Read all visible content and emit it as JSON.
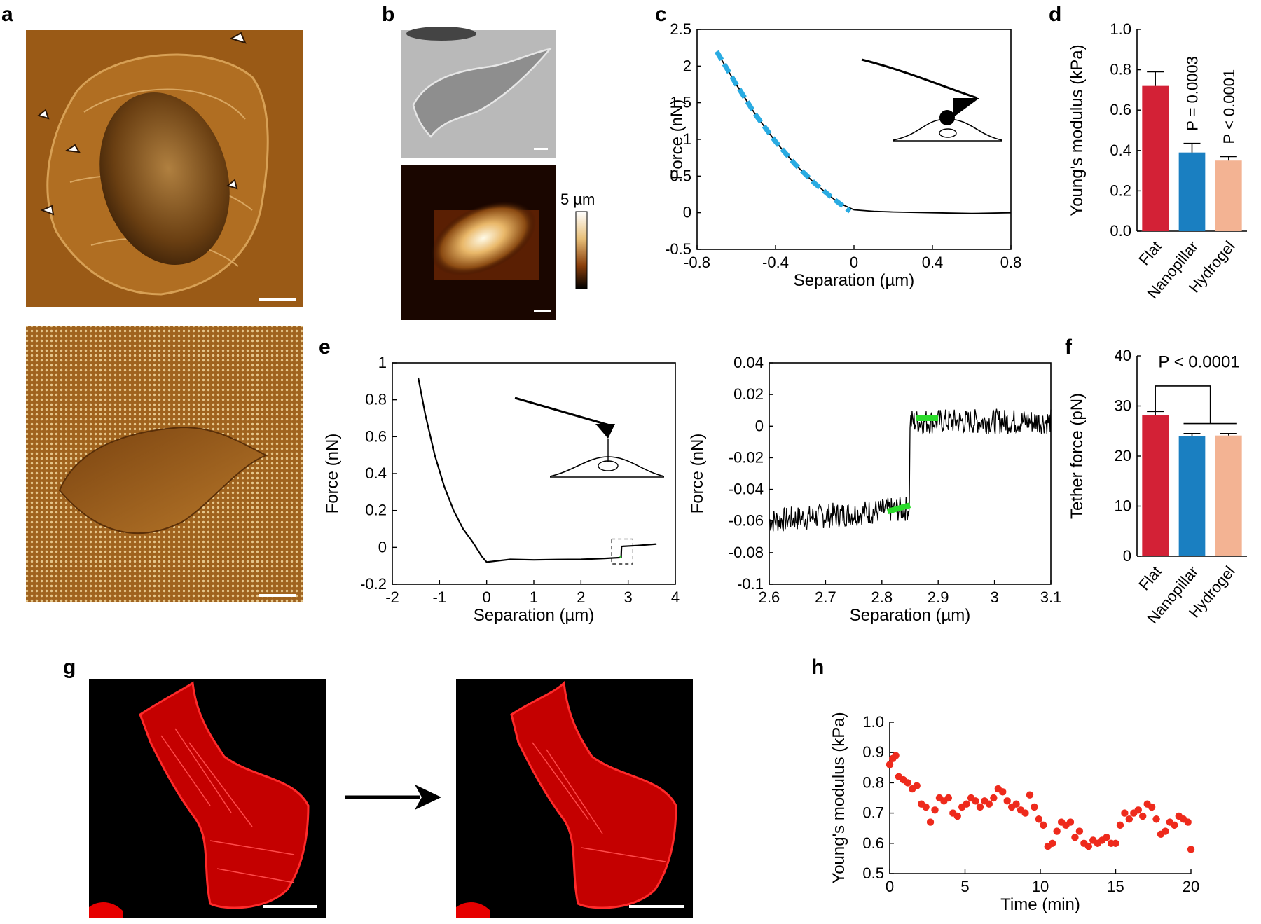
{
  "panel_labels": {
    "a": "a",
    "b": "b",
    "c": "c",
    "d": "d",
    "e": "e",
    "f": "f",
    "g": "g",
    "h": "h"
  },
  "colors": {
    "flat": "#d32136",
    "nanopillar": "#1a7fc1",
    "hydrogel": "#f3b393",
    "fit_dashed": "#29abe2",
    "step_fit": "#2bdc2b",
    "scatter": "#ee2a1c",
    "actin": "#e60000"
  },
  "panel_b": {
    "scale_label": "5 µm"
  },
  "chart_data": [
    {
      "id": "c",
      "type": "line",
      "xlabel": "Separation (µm)",
      "ylabel": "Force (nN)",
      "xlim": [
        -0.8,
        0.8
      ],
      "ylim": [
        -0.5,
        2.5
      ],
      "xticks": [
        -0.8,
        -0.4,
        0,
        0.4,
        0.8
      ],
      "xtick_labels": [
        "-0.8",
        "-0.4",
        "0",
        "0.4",
        "0.8"
      ],
      "yticks": [
        -0.5,
        0,
        0.5,
        1,
        1.5,
        2,
        2.5
      ],
      "ytick_labels": [
        "-0.5",
        "0",
        "0.5",
        "1",
        "1.5",
        "2",
        "2.5"
      ],
      "series": [
        {
          "name": "curve",
          "x": [
            -0.7,
            -0.6,
            -0.5,
            -0.4,
            -0.3,
            -0.2,
            -0.1,
            -0.05,
            0,
            0.1,
            0.2,
            0.4,
            0.6,
            0.8
          ],
          "y": [
            2.2,
            1.75,
            1.33,
            0.97,
            0.66,
            0.4,
            0.18,
            0.1,
            0.04,
            0.02,
            0.01,
            0.0,
            -0.01,
            0.0
          ]
        },
        {
          "name": "fit",
          "x": [
            -0.7,
            -0.6,
            -0.5,
            -0.4,
            -0.3,
            -0.2,
            -0.1,
            -0.02
          ],
          "y": [
            2.2,
            1.75,
            1.33,
            0.97,
            0.66,
            0.4,
            0.18,
            0.02
          ]
        }
      ]
    },
    {
      "id": "d",
      "type": "bar",
      "categories": [
        "Flat",
        "Nanopillar",
        "Hydrogel"
      ],
      "values": [
        0.72,
        0.39,
        0.35
      ],
      "errors": [
        0.07,
        0.045,
        0.02
      ],
      "ylabel": "Young's modulus (kPa)",
      "ylim": [
        0,
        1.0
      ],
      "yticks": [
        0,
        0.2,
        0.4,
        0.6,
        0.8,
        1.0
      ],
      "ytick_labels": [
        "0.0",
        "0.2",
        "0.4",
        "0.6",
        "0.8",
        "1.0"
      ],
      "annotations": [
        "P = 0.0003",
        "P < 0.0001"
      ]
    },
    {
      "id": "e1",
      "type": "line",
      "xlabel": "Separation (µm)",
      "ylabel": "Force (nN)",
      "xlim": [
        -2,
        4
      ],
      "ylim": [
        -0.2,
        1
      ],
      "xticks": [
        -2,
        -1,
        0,
        1,
        2,
        3,
        4
      ],
      "xtick_labels": [
        "-2",
        "-1",
        "0",
        "1",
        "2",
        "3",
        "4"
      ],
      "yticks": [
        -0.2,
        0,
        0.2,
        0.4,
        0.6,
        0.8,
        1
      ],
      "ytick_labels": [
        "-0.2",
        "0",
        "0.2",
        "0.4",
        "0.6",
        "0.8",
        "1"
      ],
      "series": [
        {
          "name": "retract",
          "x": [
            -1.45,
            -1.3,
            -1.1,
            -0.9,
            -0.7,
            -0.5,
            -0.3,
            -0.1,
            0,
            0.5,
            1,
            1.5,
            2,
            2.5,
            2.85,
            2.86,
            3.2,
            3.6
          ],
          "y": [
            0.92,
            0.72,
            0.5,
            0.33,
            0.2,
            0.1,
            0.03,
            -0.05,
            -0.08,
            -0.065,
            -0.068,
            -0.066,
            -0.065,
            -0.06,
            -0.055,
            0.005,
            0.01,
            0.018
          ]
        }
      ]
    },
    {
      "id": "e2",
      "type": "line",
      "xlabel": "Separation (µm)",
      "ylabel": "Force (nN)",
      "xlim": [
        2.6,
        3.1
      ],
      "ylim": [
        -0.1,
        0.04
      ],
      "xticks": [
        2.6,
        2.7,
        2.8,
        2.9,
        3,
        3.1
      ],
      "xtick_labels": [
        "2.6",
        "2.7",
        "2.8",
        "2.9",
        "3",
        "3.1"
      ],
      "yticks": [
        -0.1,
        -0.08,
        -0.06,
        -0.04,
        -0.02,
        0,
        0.02,
        0.04
      ],
      "ytick_labels": [
        "-0.1",
        "-0.08",
        "-0.06",
        "-0.04",
        "-0.02",
        "0",
        "0.02",
        "0.04"
      ],
      "series": [
        {
          "name": "noisy",
          "x": [
            2.6,
            2.85,
            2.855,
            3.1
          ],
          "y": [
            -0.06,
            -0.052,
            0.003,
            0.003
          ]
        },
        {
          "name": "fit_low",
          "x": [
            2.81,
            2.85
          ],
          "y": [
            -0.054,
            -0.05
          ]
        },
        {
          "name": "fit_high",
          "x": [
            2.86,
            2.9
          ],
          "y": [
            0.005,
            0.005
          ]
        }
      ]
    },
    {
      "id": "f",
      "type": "bar",
      "categories": [
        "Flat",
        "Nanopillar",
        "Hydrogel"
      ],
      "values": [
        28.2,
        24.0,
        24.1
      ],
      "errors": [
        0.7,
        0.5,
        0.4
      ],
      "ylabel": "Tether force (pN)",
      "ylim": [
        0,
        40
      ],
      "yticks": [
        0,
        10,
        20,
        30,
        40
      ],
      "ytick_labels": [
        "0",
        "10",
        "20",
        "30",
        "40"
      ],
      "annotations": [
        "P < 0.0001"
      ]
    },
    {
      "id": "h",
      "type": "scatter",
      "xlabel": "Time (min)",
      "ylabel": "Young's modulus (kPa)",
      "xlim": [
        0,
        20
      ],
      "ylim": [
        0.5,
        1.0
      ],
      "xticks": [
        0,
        5,
        10,
        15,
        20
      ],
      "xtick_labels": [
        "0",
        "5",
        "10",
        "15",
        "20"
      ],
      "yticks": [
        0.5,
        0.6,
        0.7,
        0.8,
        0.9,
        1.0
      ],
      "ytick_labels": [
        "0.5",
        "0.6",
        "0.7",
        "0.8",
        "0.9",
        "1.0"
      ],
      "x": [
        0,
        0.2,
        0.4,
        0.6,
        0.9,
        1.2,
        1.5,
        1.8,
        2.1,
        2.4,
        2.7,
        3.0,
        3.3,
        3.6,
        3.9,
        4.2,
        4.5,
        4.8,
        5.1,
        5.4,
        5.7,
        6.0,
        6.3,
        6.6,
        6.9,
        7.2,
        7.5,
        7.8,
        8.1,
        8.4,
        8.7,
        9.0,
        9.3,
        9.6,
        9.9,
        10.2,
        10.5,
        10.8,
        11.1,
        11.4,
        11.7,
        12.0,
        12.3,
        12.6,
        12.9,
        13.2,
        13.5,
        13.8,
        14.1,
        14.4,
        14.7,
        15.0,
        15.3,
        15.6,
        15.9,
        16.2,
        16.5,
        16.8,
        17.1,
        17.4,
        17.7,
        18.0,
        18.3,
        18.6,
        18.9,
        19.2,
        19.5,
        19.8,
        20.0
      ],
      "y": [
        0.86,
        0.88,
        0.89,
        0.82,
        0.81,
        0.8,
        0.78,
        0.79,
        0.73,
        0.72,
        0.67,
        0.71,
        0.75,
        0.74,
        0.75,
        0.7,
        0.69,
        0.72,
        0.73,
        0.75,
        0.74,
        0.72,
        0.74,
        0.73,
        0.75,
        0.78,
        0.77,
        0.74,
        0.72,
        0.73,
        0.71,
        0.7,
        0.76,
        0.72,
        0.68,
        0.66,
        0.59,
        0.6,
        0.64,
        0.67,
        0.66,
        0.67,
        0.62,
        0.64,
        0.6,
        0.59,
        0.61,
        0.6,
        0.61,
        0.62,
        0.6,
        0.6,
        0.66,
        0.7,
        0.68,
        0.7,
        0.71,
        0.69,
        0.73,
        0.72,
        0.68,
        0.63,
        0.64,
        0.67,
        0.66,
        0.69,
        0.68,
        0.67,
        0.58
      ]
    }
  ]
}
